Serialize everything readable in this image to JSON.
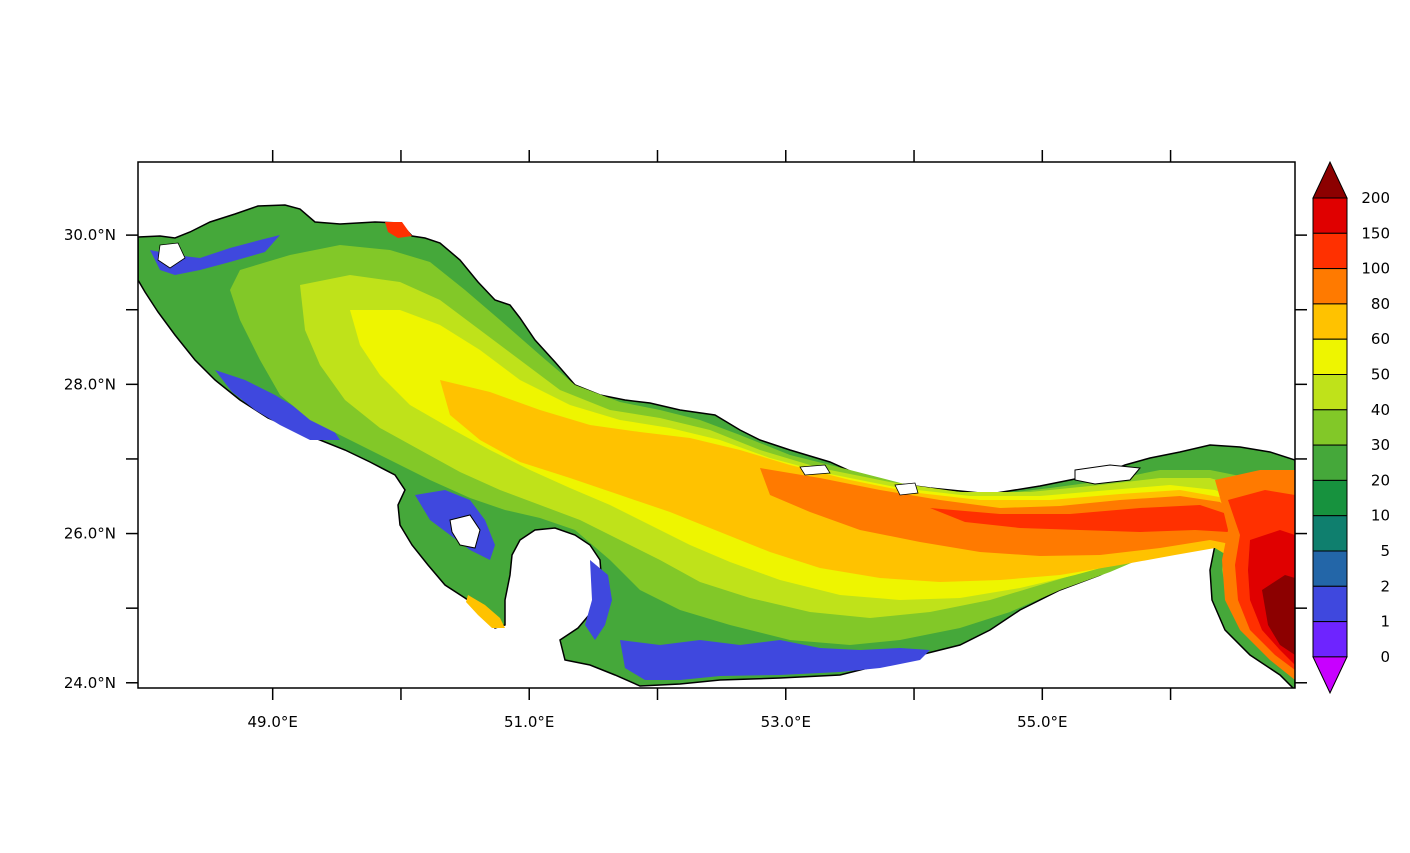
{
  "map": {
    "lon_range": [
      47.95,
      56.97
    ],
    "lat_range": [
      23.93,
      30.98
    ],
    "x_tick_labels": [
      {
        "lon": 49.0,
        "label": "49.0°E"
      },
      {
        "lon": 51.0,
        "label": "51.0°E"
      },
      {
        "lon": 53.0,
        "label": "53.0°E"
      },
      {
        "lon": 55.0,
        "label": "55.0°E"
      }
    ],
    "x_minor_ticks": [
      50.0,
      52.0,
      54.0,
      56.0
    ],
    "y_tick_labels": [
      {
        "lat": 30.0,
        "label": "30.0°N"
      },
      {
        "lat": 28.0,
        "label": "28.0°N"
      },
      {
        "lat": 26.0,
        "label": "26.0°N"
      },
      {
        "lat": 24.0,
        "label": "24.0°N"
      }
    ],
    "y_minor_ticks": [
      29.0,
      27.0,
      25.0
    ]
  },
  "colorbar": {
    "labels": [
      "200",
      "150",
      "100",
      "80",
      "60",
      "50",
      "40",
      "30",
      "20",
      "10",
      "5",
      "2",
      "1",
      "0"
    ],
    "top_triangle_color": "#8c0000",
    "bottom_triangle_color": "#c800ff",
    "colors": [
      "#e00000",
      "#ff3000",
      "#ff7a00",
      "#ffc200",
      "#eef500",
      "#bfe21a",
      "#82c828",
      "#45a83a",
      "#17923e",
      "#0f7f6e",
      "#2366a8",
      "#3f48de",
      "#6e24ff"
    ]
  }
}
